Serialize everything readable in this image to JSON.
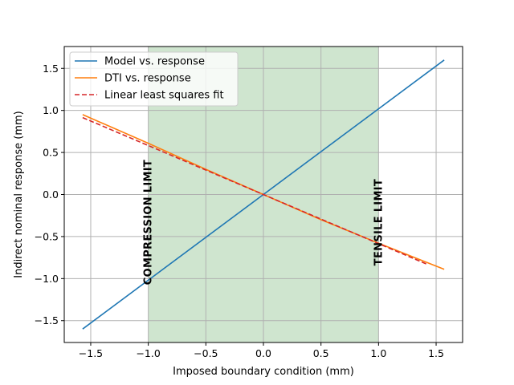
{
  "chart_data": {
    "type": "line",
    "title": "",
    "xlabel": "Imposed boundary condition (mm)",
    "ylabel": "Indirect nominal response (mm)",
    "xlim": [
      -1.73,
      1.73
    ],
    "ylim": [
      -1.76,
      1.76
    ],
    "xticks": [
      -1.5,
      -1.0,
      -0.5,
      0.0,
      0.5,
      1.0,
      1.5
    ],
    "xtick_labels": [
      "−1.5",
      "−1.0",
      "−0.5",
      "0.0",
      "0.5",
      "1.0",
      "1.5"
    ],
    "yticks": [
      -1.5,
      -1.0,
      -0.5,
      0.0,
      0.5,
      1.0,
      1.5
    ],
    "ytick_labels": [
      "−1.5",
      "−1.0",
      "−0.5",
      "0.0",
      "0.5",
      "1.0",
      "1.5"
    ],
    "grid": true,
    "legend_position": "top-left",
    "shaded_region": {
      "x": [
        -1.0,
        1.0
      ],
      "color": "#cfe5cf"
    },
    "series": [
      {
        "name": "Model vs. response",
        "color": "#1f77b4",
        "style": "solid",
        "x": [
          -1.57,
          1.57
        ],
        "y": [
          -1.6,
          1.6
        ]
      },
      {
        "name": "DTI vs. response",
        "color": "#ff7f0e",
        "style": "solid",
        "x": [
          -1.57,
          -1.0,
          -0.5,
          0.0,
          0.5,
          1.0,
          1.57
        ],
        "y": [
          0.95,
          0.61,
          0.3,
          0.0,
          -0.3,
          -0.58,
          -0.89
        ]
      },
      {
        "name": "Linear least squares fit",
        "color": "#d62728",
        "style": "dashed",
        "x": [
          -1.57,
          1.43
        ],
        "y": [
          0.915,
          -0.835
        ]
      }
    ],
    "annotations": [
      {
        "text": "COMPRESSION LIMIT",
        "x": -1.0,
        "y": -0.33,
        "rotation": -90
      },
      {
        "text": "TENSILE LIMIT",
        "x": 1.0,
        "y": -0.33,
        "rotation": -90
      }
    ]
  }
}
